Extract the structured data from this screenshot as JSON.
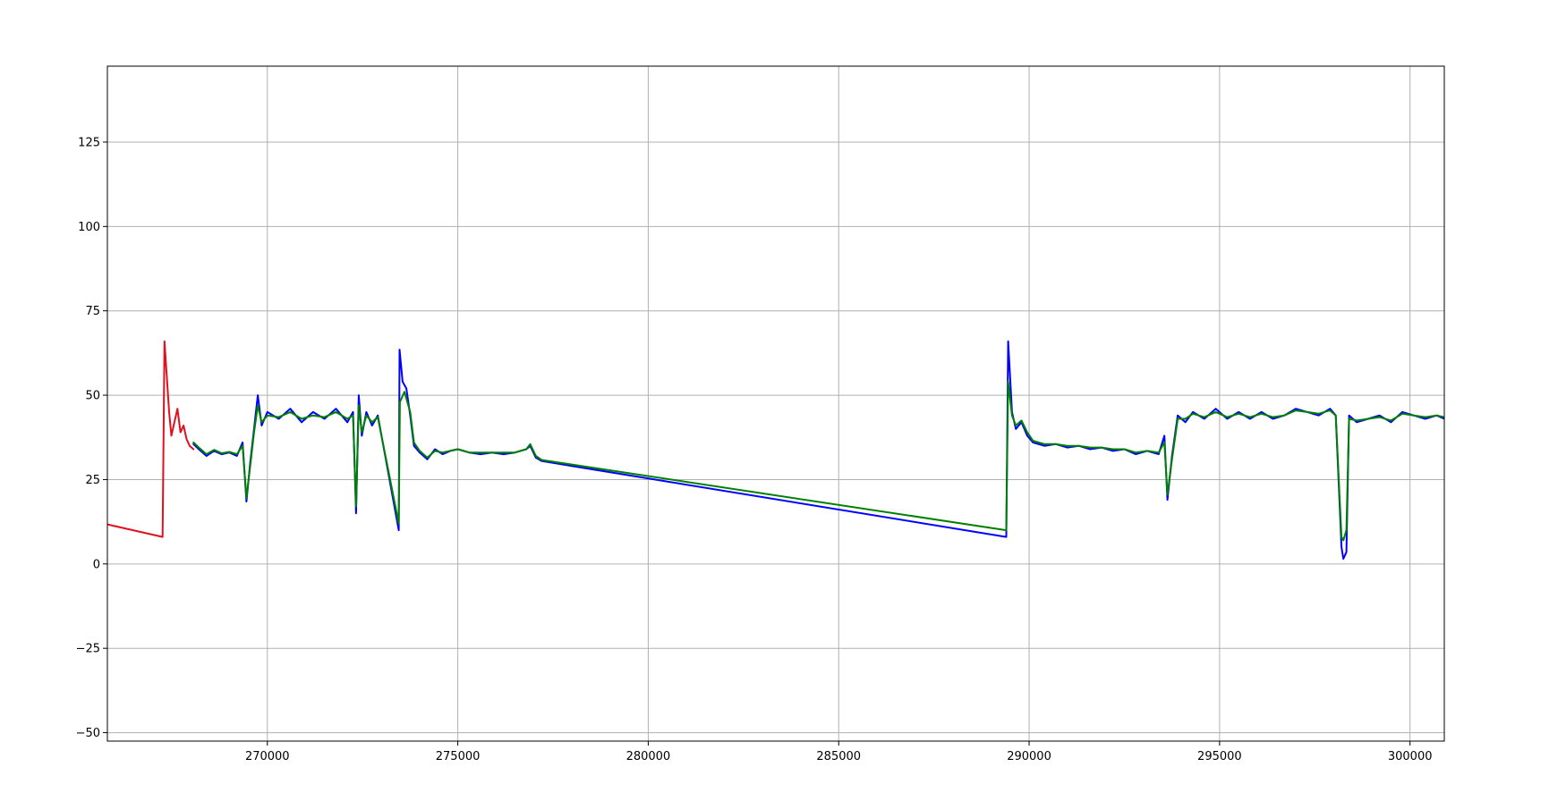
{
  "chart_data": {
    "type": "line",
    "title": "",
    "xlabel": "",
    "ylabel": "",
    "xlim": [
      265800,
      300900
    ],
    "ylim": [
      -52.5,
      147.5
    ],
    "xticks": [
      270000,
      275000,
      280000,
      285000,
      290000,
      295000,
      300000
    ],
    "xtick_labels": [
      "270000",
      "275000",
      "280000",
      "285000",
      "290000",
      "295000",
      "300000"
    ],
    "yticks": [
      -50,
      -25,
      0,
      25,
      50,
      75,
      100,
      125
    ],
    "ytick_labels": [
      "−50",
      "−25",
      "0",
      "25",
      "50",
      "75",
      "100",
      "125"
    ],
    "grid": true,
    "legend": "none",
    "series": [
      {
        "color": "#e0101e",
        "points": [
          [
            265800,
            11.7
          ],
          [
            267250,
            8.0
          ],
          [
            267300,
            66.0
          ],
          [
            267420,
            45.0
          ],
          [
            267480,
            38.0
          ],
          [
            267560,
            42.0
          ],
          [
            267640,
            46.0
          ],
          [
            267720,
            39.0
          ],
          [
            267800,
            41.0
          ],
          [
            267880,
            37.0
          ],
          [
            267960,
            35.0
          ],
          [
            268060,
            34.0
          ]
        ]
      },
      {
        "color": "#0000ff",
        "points": [
          [
            268060,
            35.5
          ],
          [
            268200,
            34.0
          ],
          [
            268400,
            32.0
          ],
          [
            268600,
            33.5
          ],
          [
            268800,
            32.5
          ],
          [
            269000,
            33.0
          ],
          [
            269200,
            32.0
          ],
          [
            269350,
            36.0
          ],
          [
            269450,
            18.5
          ],
          [
            269550,
            30.0
          ],
          [
            269650,
            40.0
          ],
          [
            269750,
            50.0
          ],
          [
            269850,
            41.0
          ],
          [
            270000,
            45.0
          ],
          [
            270300,
            43.0
          ],
          [
            270600,
            46.0
          ],
          [
            270900,
            42.0
          ],
          [
            271200,
            45.0
          ],
          [
            271500,
            43.0
          ],
          [
            271800,
            46.0
          ],
          [
            272100,
            42.0
          ],
          [
            272250,
            45.0
          ],
          [
            272330,
            15.0
          ],
          [
            272400,
            50.0
          ],
          [
            272480,
            38.0
          ],
          [
            272600,
            45.0
          ],
          [
            272750,
            41.0
          ],
          [
            272900,
            44.0
          ],
          [
            273450,
            10.0
          ],
          [
            273470,
            63.5
          ],
          [
            273550,
            54.0
          ],
          [
            273650,
            52.0
          ],
          [
            273750,
            44.0
          ],
          [
            273850,
            35.0
          ],
          [
            274000,
            33.0
          ],
          [
            274200,
            31.0
          ],
          [
            274400,
            34.0
          ],
          [
            274600,
            32.5
          ],
          [
            274800,
            33.5
          ],
          [
            275000,
            34.0
          ],
          [
            275300,
            33.0
          ],
          [
            275600,
            32.5
          ],
          [
            275900,
            33.0
          ],
          [
            276200,
            32.5
          ],
          [
            276500,
            33.0
          ],
          [
            276800,
            34.0
          ],
          [
            276900,
            35.0
          ],
          [
            277050,
            31.5
          ],
          [
            277200,
            30.5
          ],
          [
            289400,
            8.0
          ],
          [
            289450,
            66.0
          ],
          [
            289550,
            45.0
          ],
          [
            289650,
            40.0
          ],
          [
            289800,
            42.0
          ],
          [
            289950,
            38.0
          ],
          [
            290100,
            36.0
          ],
          [
            290400,
            35.0
          ],
          [
            290700,
            35.5
          ],
          [
            291000,
            34.5
          ],
          [
            291300,
            35.0
          ],
          [
            291600,
            34.0
          ],
          [
            291900,
            34.5
          ],
          [
            292200,
            33.5
          ],
          [
            292500,
            34.0
          ],
          [
            292800,
            32.5
          ],
          [
            293100,
            33.5
          ],
          [
            293400,
            32.5
          ],
          [
            293550,
            38.0
          ],
          [
            293630,
            19.0
          ],
          [
            293750,
            32.0
          ],
          [
            293900,
            44.0
          ],
          [
            294100,
            42.0
          ],
          [
            294300,
            45.0
          ],
          [
            294600,
            43.0
          ],
          [
            294900,
            46.0
          ],
          [
            295200,
            43.0
          ],
          [
            295500,
            45.0
          ],
          [
            295800,
            43.0
          ],
          [
            296100,
            45.0
          ],
          [
            296400,
            43.0
          ],
          [
            296700,
            44.0
          ],
          [
            297000,
            46.0
          ],
          [
            297300,
            45.0
          ],
          [
            297600,
            44.0
          ],
          [
            297900,
            46.0
          ],
          [
            298050,
            44.0
          ],
          [
            298200,
            5.0
          ],
          [
            298250,
            1.5
          ],
          [
            298330,
            3.5
          ],
          [
            298400,
            44.0
          ],
          [
            298600,
            42.0
          ],
          [
            298900,
            43.0
          ],
          [
            299200,
            44.0
          ],
          [
            299500,
            42.0
          ],
          [
            299800,
            45.0
          ],
          [
            300100,
            44.0
          ],
          [
            300400,
            43.0
          ],
          [
            300700,
            44.0
          ],
          [
            300900,
            43.0
          ]
        ]
      },
      {
        "color": "#008000",
        "points": [
          [
            268060,
            36.0
          ],
          [
            268200,
            34.5
          ],
          [
            268400,
            32.5
          ],
          [
            268600,
            33.8
          ],
          [
            268800,
            32.8
          ],
          [
            269000,
            33.2
          ],
          [
            269200,
            32.5
          ],
          [
            269350,
            35.0
          ],
          [
            269450,
            19.5
          ],
          [
            269550,
            29.0
          ],
          [
            269650,
            39.0
          ],
          [
            269750,
            47.0
          ],
          [
            269850,
            42.0
          ],
          [
            270000,
            44.0
          ],
          [
            270300,
            43.5
          ],
          [
            270600,
            45.0
          ],
          [
            270900,
            43.0
          ],
          [
            271200,
            44.0
          ],
          [
            271500,
            43.5
          ],
          [
            271800,
            45.0
          ],
          [
            272100,
            43.0
          ],
          [
            272250,
            44.0
          ],
          [
            272330,
            17.0
          ],
          [
            272400,
            47.0
          ],
          [
            272480,
            39.0
          ],
          [
            272600,
            44.0
          ],
          [
            272750,
            42.0
          ],
          [
            272900,
            43.5
          ],
          [
            273450,
            12.0
          ],
          [
            273480,
            48.0
          ],
          [
            273600,
            51.0
          ],
          [
            273750,
            45.0
          ],
          [
            273850,
            36.0
          ],
          [
            274000,
            33.5
          ],
          [
            274200,
            31.5
          ],
          [
            274400,
            33.5
          ],
          [
            274600,
            33.0
          ],
          [
            274800,
            33.5
          ],
          [
            275000,
            34.0
          ],
          [
            275300,
            33.0
          ],
          [
            275600,
            33.0
          ],
          [
            275900,
            33.0
          ],
          [
            276200,
            33.0
          ],
          [
            276500,
            33.0
          ],
          [
            276800,
            34.0
          ],
          [
            276900,
            35.5
          ],
          [
            277050,
            32.0
          ],
          [
            277200,
            30.8
          ],
          [
            289400,
            10.0
          ],
          [
            289450,
            54.0
          ],
          [
            289550,
            44.0
          ],
          [
            289650,
            41.0
          ],
          [
            289800,
            42.5
          ],
          [
            289950,
            39.0
          ],
          [
            290100,
            36.5
          ],
          [
            290400,
            35.5
          ],
          [
            290700,
            35.5
          ],
          [
            291000,
            35.0
          ],
          [
            291300,
            35.0
          ],
          [
            291600,
            34.5
          ],
          [
            291900,
            34.5
          ],
          [
            292200,
            34.0
          ],
          [
            292500,
            34.0
          ],
          [
            292800,
            33.0
          ],
          [
            293100,
            33.5
          ],
          [
            293400,
            33.0
          ],
          [
            293550,
            36.0
          ],
          [
            293630,
            20.5
          ],
          [
            293750,
            31.0
          ],
          [
            293900,
            43.0
          ],
          [
            294100,
            43.0
          ],
          [
            294300,
            44.5
          ],
          [
            294600,
            43.5
          ],
          [
            294900,
            45.0
          ],
          [
            295200,
            43.5
          ],
          [
            295500,
            44.5
          ],
          [
            295800,
            43.5
          ],
          [
            296100,
            44.5
          ],
          [
            296400,
            43.5
          ],
          [
            296700,
            44.0
          ],
          [
            297000,
            45.5
          ],
          [
            297300,
            45.0
          ],
          [
            297600,
            44.5
          ],
          [
            297900,
            45.5
          ],
          [
            298050,
            44.0
          ],
          [
            298200,
            8.0
          ],
          [
            298250,
            7.0
          ],
          [
            298330,
            10.0
          ],
          [
            298400,
            43.0
          ],
          [
            298600,
            42.5
          ],
          [
            298900,
            43.0
          ],
          [
            299200,
            43.5
          ],
          [
            299500,
            42.5
          ],
          [
            299800,
            44.5
          ],
          [
            300100,
            44.0
          ],
          [
            300400,
            43.5
          ],
          [
            300700,
            44.0
          ],
          [
            300900,
            43.5
          ]
        ]
      }
    ]
  }
}
